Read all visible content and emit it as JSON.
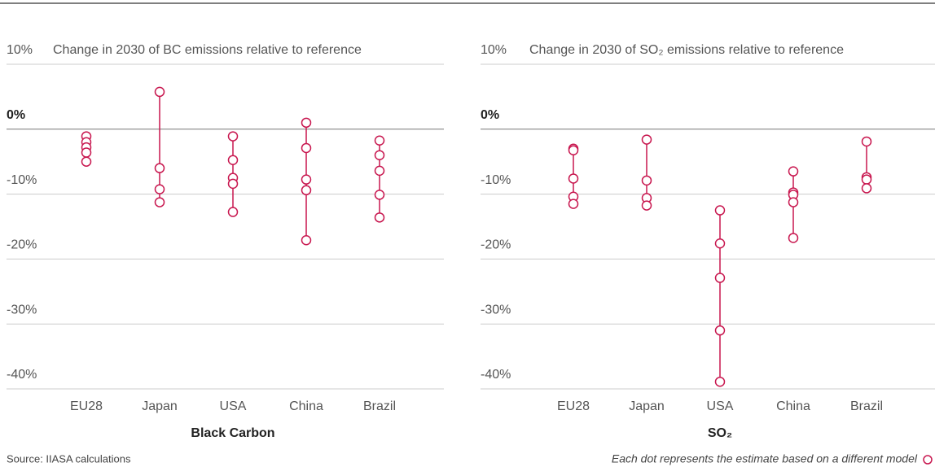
{
  "chart_data": [
    {
      "type": "dotplot",
      "title": "Change in 2030 of BC emissions relative to reference",
      "xlabel": "Black Carbon",
      "categories": [
        "EU28",
        "Japan",
        "USA",
        "China",
        "Brazil"
      ],
      "values": [
        [
          -1.1,
          -2,
          -2.8,
          -3.6,
          -5
        ],
        [
          5.75,
          -6,
          -9.25,
          -11.25
        ],
        [
          -1.1,
          -4.75,
          -7.5,
          -8.4,
          -12.75
        ],
        [
          1,
          -2.9,
          -7.75,
          -9.4,
          -17.1
        ],
        [
          -1.75,
          -4,
          -6.4,
          -10.1,
          -13.6
        ]
      ],
      "color": "#c8174f",
      "ylim": [
        -40,
        10
      ],
      "yticks": [
        {
          "value": 10,
          "label": "10%"
        },
        {
          "value": 0,
          "label": "0%"
        },
        {
          "value": -10,
          "label": "-10%"
        },
        {
          "value": -20,
          "label": "-20%"
        },
        {
          "value": -30,
          "label": "-30%"
        },
        {
          "value": -40,
          "label": "-40%"
        }
      ],
      "grid": true
    },
    {
      "type": "dotplot",
      "title": "Change in 2030 of SO₂ emissions relative to reference",
      "xlabel": "SO₂",
      "categories": [
        "EU28",
        "Japan",
        "USA",
        "China",
        "Brazil"
      ],
      "values": [
        [
          -3,
          -3.25,
          -7.6,
          -10.4,
          -11.5
        ],
        [
          -1.6,
          -7.9,
          -10.6,
          -11.75
        ],
        [
          -12.5,
          -17.6,
          -22.9,
          -31,
          -38.9
        ],
        [
          -6.5,
          -9.75,
          -10.1,
          -11.25,
          -16.75
        ],
        [
          -1.9,
          -7.4,
          -7.75,
          -9.1
        ]
      ],
      "color": "#c8174f",
      "ylim": [
        -40,
        10
      ],
      "yticks": [
        {
          "value": 10,
          "label": "10%"
        },
        {
          "value": 0,
          "label": "0%"
        },
        {
          "value": -10,
          "label": "-10%"
        },
        {
          "value": -20,
          "label": "-20%"
        },
        {
          "value": -30,
          "label": "-30%"
        },
        {
          "value": -40,
          "label": "-40%"
        }
      ],
      "grid": true
    }
  ],
  "source": "Source: IIASA calculations",
  "legend_note": "Each dot represents the estimate based on a different model"
}
